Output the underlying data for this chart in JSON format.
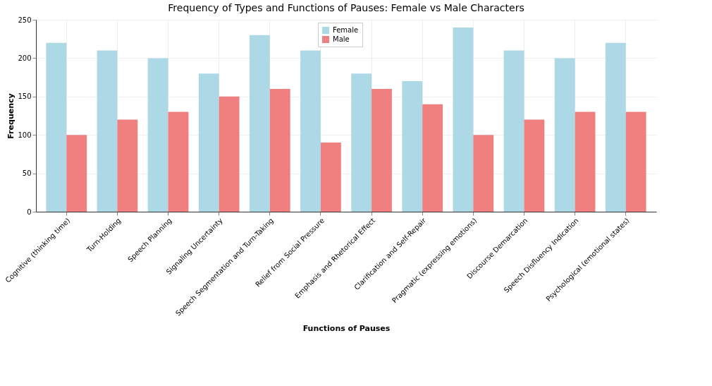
{
  "chart_data": {
    "type": "bar",
    "title": "Frequency of Types and Functions of Pauses: Female vs Male Characters",
    "xlabel": "Functions of Pauses",
    "ylabel": "Frequency",
    "categories": [
      "Cognitive (thinking time)",
      "Turn-Holding",
      "Speech Planning",
      "Signaling Uncertainty",
      "Speech Segmentation and Turn-Taking",
      "Relief from Social Pressure",
      "Emphasis and Rhetorical Effect",
      "Clarification and Self-Repair",
      "Pragmatic (expressing emotions)",
      "Discourse Demarcation",
      "Speech Disfluency Indication",
      "Psychological (emotional states)"
    ],
    "series": [
      {
        "name": "Female",
        "color": "#add8e6",
        "values": [
          220,
          210,
          200,
          180,
          230,
          210,
          180,
          170,
          240,
          210,
          200,
          220
        ]
      },
      {
        "name": "Male",
        "color": "#f08080",
        "values": [
          100,
          120,
          130,
          150,
          160,
          90,
          160,
          140,
          100,
          120,
          130,
          130
        ]
      }
    ],
    "ylim": [
      0,
      250
    ],
    "yticks": [
      0,
      50,
      100,
      150,
      200,
      250
    ],
    "grid": true,
    "legend": "top"
  }
}
